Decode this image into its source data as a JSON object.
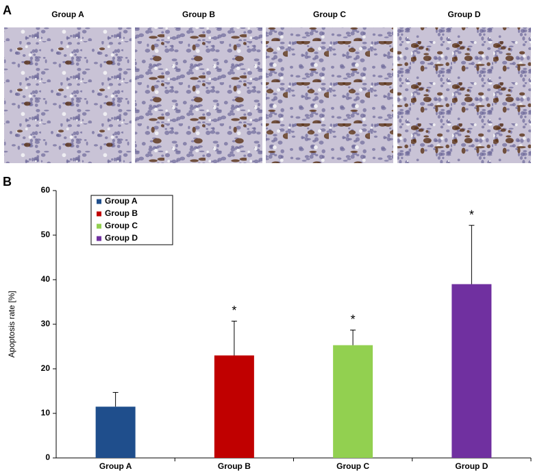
{
  "panel_a": {
    "label": "A",
    "images": [
      {
        "title": "Group A"
      },
      {
        "title": "Group B"
      },
      {
        "title": "Group C"
      },
      {
        "title": "Group D"
      }
    ]
  },
  "chart_data": {
    "type": "bar",
    "label": "B",
    "ylabel": "Apoptosis rate [%]",
    "categories": [
      "Group A",
      "Group B",
      "Group C",
      "Group D"
    ],
    "values": [
      11.5,
      23,
      25.3,
      39
    ],
    "errors": [
      3.2,
      7.7,
      3.4,
      13.2
    ],
    "colors": [
      "#1f4e8c",
      "#c00000",
      "#92d050",
      "#7030a0"
    ],
    "significance": [
      null,
      "*",
      "*",
      "*"
    ],
    "ylim": [
      0,
      60
    ],
    "yticks": [
      0,
      10,
      20,
      30,
      40,
      50,
      60
    ],
    "legend": "upper left"
  }
}
